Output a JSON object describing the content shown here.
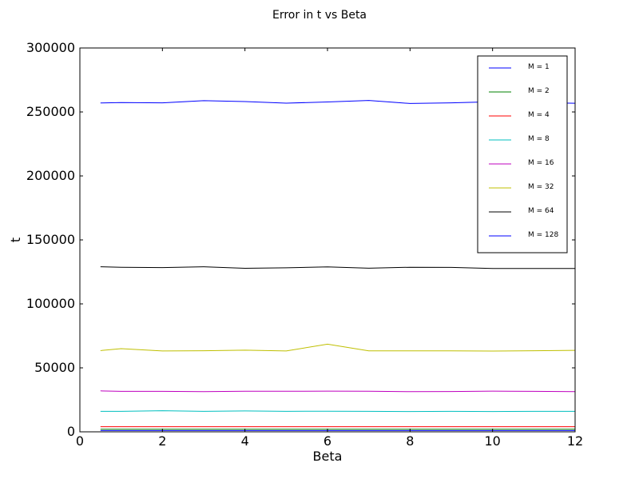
{
  "chart_data": {
    "type": "line",
    "title": "Error in t vs Beta",
    "xlabel": "Beta",
    "ylabel": "t",
    "xlim": [
      0,
      12
    ],
    "ylim": [
      0,
      300000
    ],
    "xticks": [
      0,
      2,
      4,
      6,
      8,
      10,
      12
    ],
    "xtick_labels": [
      "0",
      "2",
      "4",
      "6",
      "8",
      "10",
      "12"
    ],
    "yticks": [
      0,
      50000,
      100000,
      150000,
      200000,
      250000,
      300000
    ],
    "ytick_labels": [
      "0",
      "50000",
      "100000",
      "150000",
      "200000",
      "250000",
      "300000"
    ],
    "grid": false,
    "legend_position": "top-right",
    "x": [
      0.5,
      1,
      2,
      3,
      4,
      5,
      6,
      7,
      8,
      9,
      10,
      11,
      12
    ],
    "series": [
      {
        "name": "M = 1",
        "color": "#0000ff",
        "values": [
          1000,
          1000,
          1000,
          1000,
          1000,
          1000,
          1000,
          1000,
          1000,
          1000,
          1000,
          1000,
          1000
        ]
      },
      {
        "name": "M = 2",
        "color": "#008000",
        "values": [
          2000,
          2000,
          2000,
          2000,
          2000,
          2000,
          2000,
          2000,
          2000,
          2000,
          2000,
          2000,
          2000
        ]
      },
      {
        "name": "M = 4",
        "color": "#ff0000",
        "values": [
          4000,
          4000,
          4000,
          4000,
          4000,
          4000,
          4000,
          4000,
          4000,
          4000,
          4000,
          4000,
          4000
        ]
      },
      {
        "name": "M = 8",
        "color": "#00bfbf",
        "values": [
          16000,
          16000,
          16500,
          16000,
          16300,
          16000,
          16100,
          16000,
          15900,
          16000,
          15900,
          16000,
          16000
        ]
      },
      {
        "name": "M = 16",
        "color": "#bf00bf",
        "values": [
          32000,
          31600,
          31600,
          31400,
          31700,
          31700,
          31800,
          31700,
          31400,
          31500,
          31800,
          31600,
          31400
        ]
      },
      {
        "name": "M = 32",
        "color": "#bfbf00",
        "values": [
          63500,
          65000,
          63200,
          63400,
          63800,
          63200,
          68500,
          63300,
          63300,
          63300,
          63100,
          63400,
          63700
        ]
      },
      {
        "name": "M = 64",
        "color": "#000000",
        "values": [
          129000,
          128600,
          128400,
          129000,
          127800,
          128200,
          128900,
          127900,
          128600,
          128500,
          127700,
          127600,
          127600
        ]
      },
      {
        "name": "M = 128",
        "color": "#0000ff",
        "values": [
          257000,
          257300,
          257100,
          258800,
          258100,
          256900,
          257800,
          259000,
          256600,
          257100,
          258000,
          257300,
          256800
        ]
      }
    ]
  }
}
